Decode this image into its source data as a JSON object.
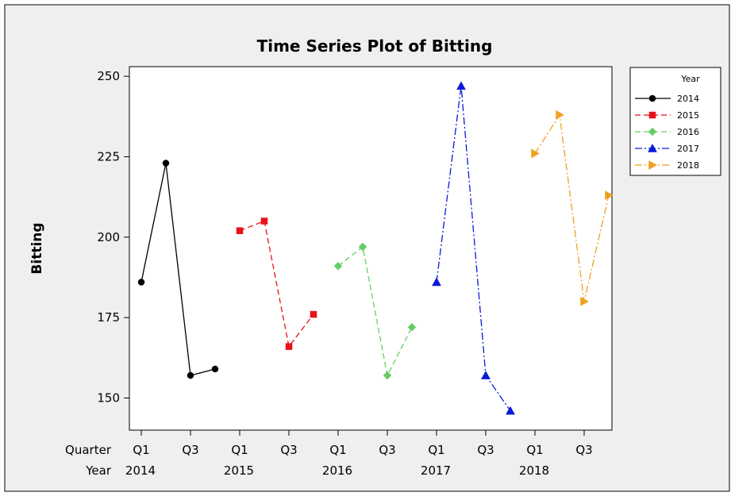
{
  "chart_data": {
    "type": "line",
    "title": "Time Series Plot of Bitting",
    "ylabel": "Bitting",
    "xlabel": "",
    "ylim": [
      140,
      253
    ],
    "y_ticks": [
      150,
      175,
      200,
      225,
      250
    ],
    "x_axis_rows": [
      {
        "label": "Quarter",
        "ticks": [
          "Q1",
          "Q3",
          "Q1",
          "Q3",
          "Q1",
          "Q3",
          "Q1",
          "Q3",
          "Q1",
          "Q3"
        ]
      },
      {
        "label": "Year",
        "ticks": [
          "2014",
          "2015",
          "2016",
          "2017",
          "2018"
        ]
      }
    ],
    "legend": {
      "title": "Year",
      "position": "right"
    },
    "series": [
      {
        "name": "2014",
        "marker": "circle",
        "line": "solid",
        "color": "#000000",
        "values": [
          186,
          223,
          157,
          159
        ]
      },
      {
        "name": "2015",
        "marker": "square",
        "line": "dashed",
        "color": "#e8121a",
        "values": [
          202,
          205,
          166,
          176
        ]
      },
      {
        "name": "2016",
        "marker": "diamond",
        "line": "dashed",
        "color": "#66cc66",
        "values": [
          191,
          197,
          157,
          172
        ]
      },
      {
        "name": "2017",
        "marker": "triangle-up",
        "line": "dashdot",
        "color": "#0a1ad8",
        "values": [
          186,
          247,
          157,
          146
        ]
      },
      {
        "name": "2018",
        "marker": "triangle-right",
        "line": "dashdot",
        "color": "#f0a020",
        "values": [
          226,
          238,
          180,
          213
        ]
      }
    ]
  }
}
